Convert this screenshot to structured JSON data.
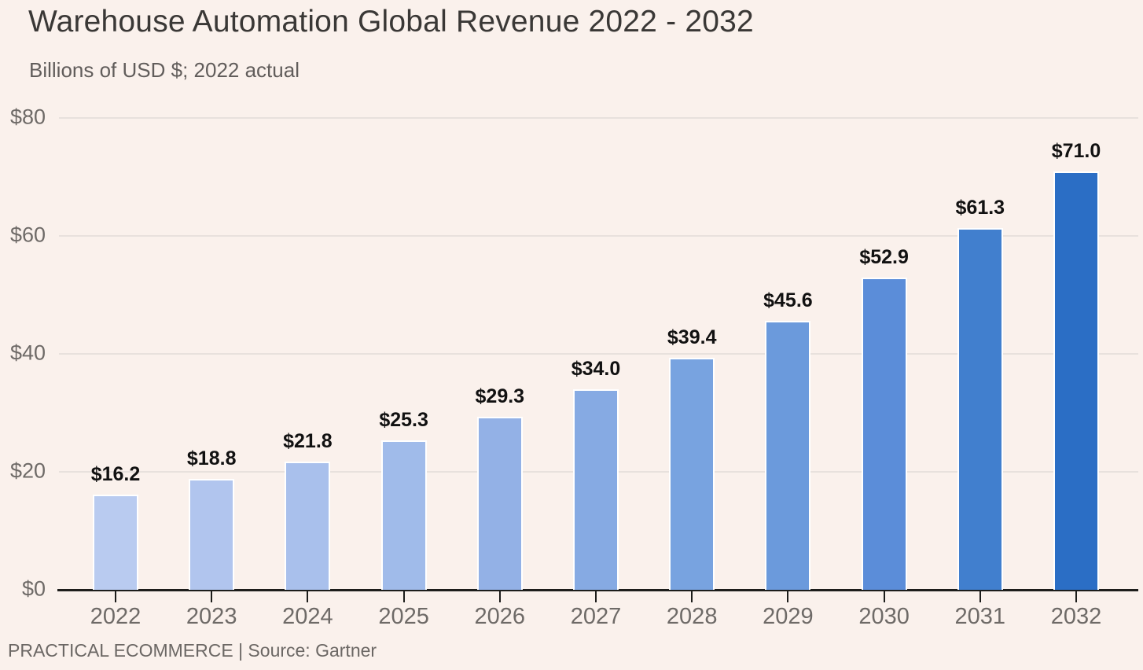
{
  "chart_data": {
    "type": "bar",
    "title": "Warehouse Automation Global Revenue 2022 - 2032",
    "subtitle": "Billions of USD $; 2022 actual",
    "source": "PRACTICAL ECOMMERCE | Source: Gartner",
    "categories": [
      "2022",
      "2023",
      "2024",
      "2025",
      "2026",
      "2027",
      "2028",
      "2029",
      "2030",
      "2031",
      "2032"
    ],
    "values": [
      16.2,
      18.8,
      21.8,
      25.3,
      29.3,
      34.0,
      39.4,
      45.6,
      52.9,
      61.3,
      71.0
    ],
    "value_labels": [
      "$16.2",
      "$18.8",
      "$21.8",
      "$25.3",
      "$29.3",
      "$34.0",
      "$39.4",
      "$45.6",
      "$52.9",
      "$61.3",
      "$71.0"
    ],
    "bar_colors": [
      "#b9cbf0",
      "#b1c5ee",
      "#a9c0ec",
      "#a0bbea",
      "#93b1e6",
      "#86aae3",
      "#78a3e0",
      "#6b9adc",
      "#5b8dd9",
      "#417fce",
      "#2b6ec5"
    ],
    "xlabel": "",
    "ylabel": "",
    "ylim": [
      0,
      80
    ],
    "y_ticks": [
      {
        "value": 0,
        "label": "$0"
      },
      {
        "value": 20,
        "label": "$20"
      },
      {
        "value": 40,
        "label": "$40"
      },
      {
        "value": 60,
        "label": "$60"
      },
      {
        "value": 80,
        "label": "$80"
      }
    ],
    "grid": "horizontal",
    "legend": "none"
  },
  "colors": {
    "background": "#faf1ec",
    "axis_line": "#1d1d1b",
    "gridline": "#e8e1dd",
    "tick_label": "#6e6a67",
    "title_text": "#3a3836",
    "subtitle_text": "#615d5b",
    "value_label_text": "#111111",
    "bar_border": "#ffffff"
  }
}
